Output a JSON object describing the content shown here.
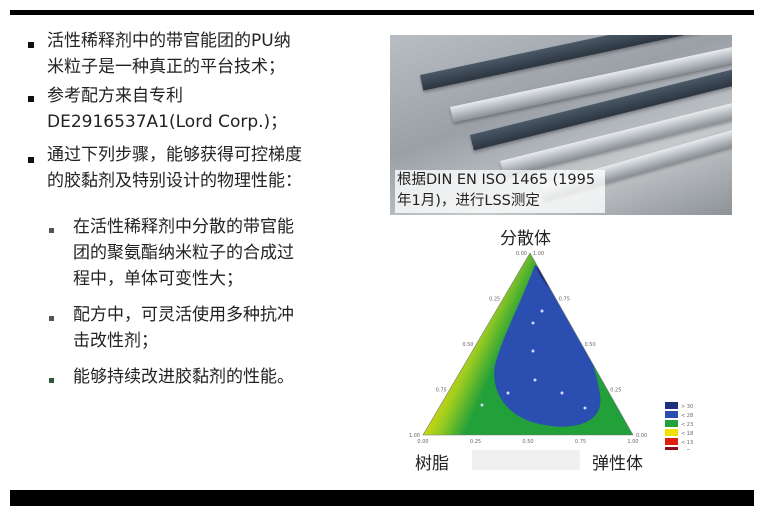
{
  "bullets": [
    {
      "lines": [
        "活性稀释剂中的带官能团的PU纳",
        "米粒子是一种真正的平台技术；"
      ]
    },
    {
      "lines": [
        "参考配方来自专利",
        "DE2916537A1(Lord Corp.)；"
      ]
    },
    {
      "lines": [
        "通过下列步骤，能够获得可控梯度",
        "的胶黏剂及特别设计的物理性能："
      ]
    }
  ],
  "sub_bullets": [
    {
      "lines": [
        "在活性稀释剂中分散的带官能",
        "团的聚氨酯纳米粒子的合成过",
        "程中，单体可变性大；"
      ]
    },
    {
      "lines": [
        "配方中，可灵活使用多种抗冲",
        "击改性剂；"
      ]
    },
    {
      "lines": [
        "能够持续改进胶黏剂的性能。"
      ]
    }
  ],
  "photo_caption": [
    "根据DIN EN ISO 1465 (1995",
    "年1月)，进行LSS测定"
  ],
  "ternary": {
    "top_label": "分散体",
    "left_label": "树脂",
    "right_label": "弹性体",
    "ticks_left": [
      "1.00",
      "0.75",
      "0.50",
      "0.25",
      "0.00"
    ],
    "ticks_right": [
      "1.00",
      "0.75",
      "0.50",
      "0.25",
      "0.00"
    ],
    "ticks_bottom": [
      "0.00",
      "0.25",
      "0.50",
      "0.75",
      "1.00"
    ],
    "legend": [
      {
        "label": "> 30",
        "color": "#1f2f7a"
      },
      {
        "label": "< 28",
        "color": "#2a4fb0"
      },
      {
        "label": "< 23",
        "color": "#22a03a"
      },
      {
        "label": "< 18",
        "color": "#f2e000"
      },
      {
        "label": "< 13",
        "color": "#e02010"
      },
      {
        "label": "< 8",
        "color": "#8a1020"
      }
    ]
  }
}
